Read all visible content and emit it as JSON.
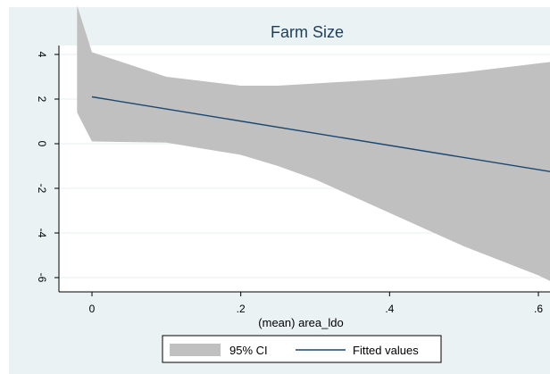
{
  "chart_data": {
    "type": "line",
    "title": "Farm Size",
    "xlabel": "(mean) area_ldo",
    "ylabel": "",
    "xlim": [
      -0.02,
      0.63
    ],
    "ylim": [
      -6.4,
      4.4
    ],
    "xticks": [
      0,
      0.2,
      0.4,
      0.6
    ],
    "xtick_labels": [
      "0",
      ".2",
      ".4",
      ".6"
    ],
    "yticks": [
      -6,
      -4,
      -2,
      0,
      2,
      4
    ],
    "ytick_labels": [
      "-6",
      "-4",
      "-2",
      "0",
      "2",
      "4"
    ],
    "grid": true,
    "legend_position": "bottom",
    "series": [
      {
        "name": "95% CI",
        "kind": "band",
        "x": [
          -0.02,
          0.0,
          0.1,
          0.2,
          0.25,
          0.3,
          0.4,
          0.5,
          0.6,
          0.625
        ],
        "upper": [
          6.2,
          4.1,
          3.0,
          2.6,
          2.6,
          2.7,
          2.9,
          3.2,
          3.6,
          3.7
        ],
        "lower": [
          1.4,
          0.1,
          0.05,
          -0.5,
          -1.0,
          -1.6,
          -3.1,
          -4.6,
          -5.9,
          -6.3
        ],
        "color": "#c0c0c0"
      },
      {
        "name": "Fitted values",
        "kind": "line",
        "x": [
          0.0,
          0.625
        ],
        "y": [
          2.1,
          -1.3
        ],
        "color": "#1a476f"
      }
    ],
    "colors": {
      "outer_background": "#eaf2f3",
      "plot_background": "#ffffff",
      "grid": "#eaf2f3",
      "title": "#1e3f5a"
    }
  }
}
